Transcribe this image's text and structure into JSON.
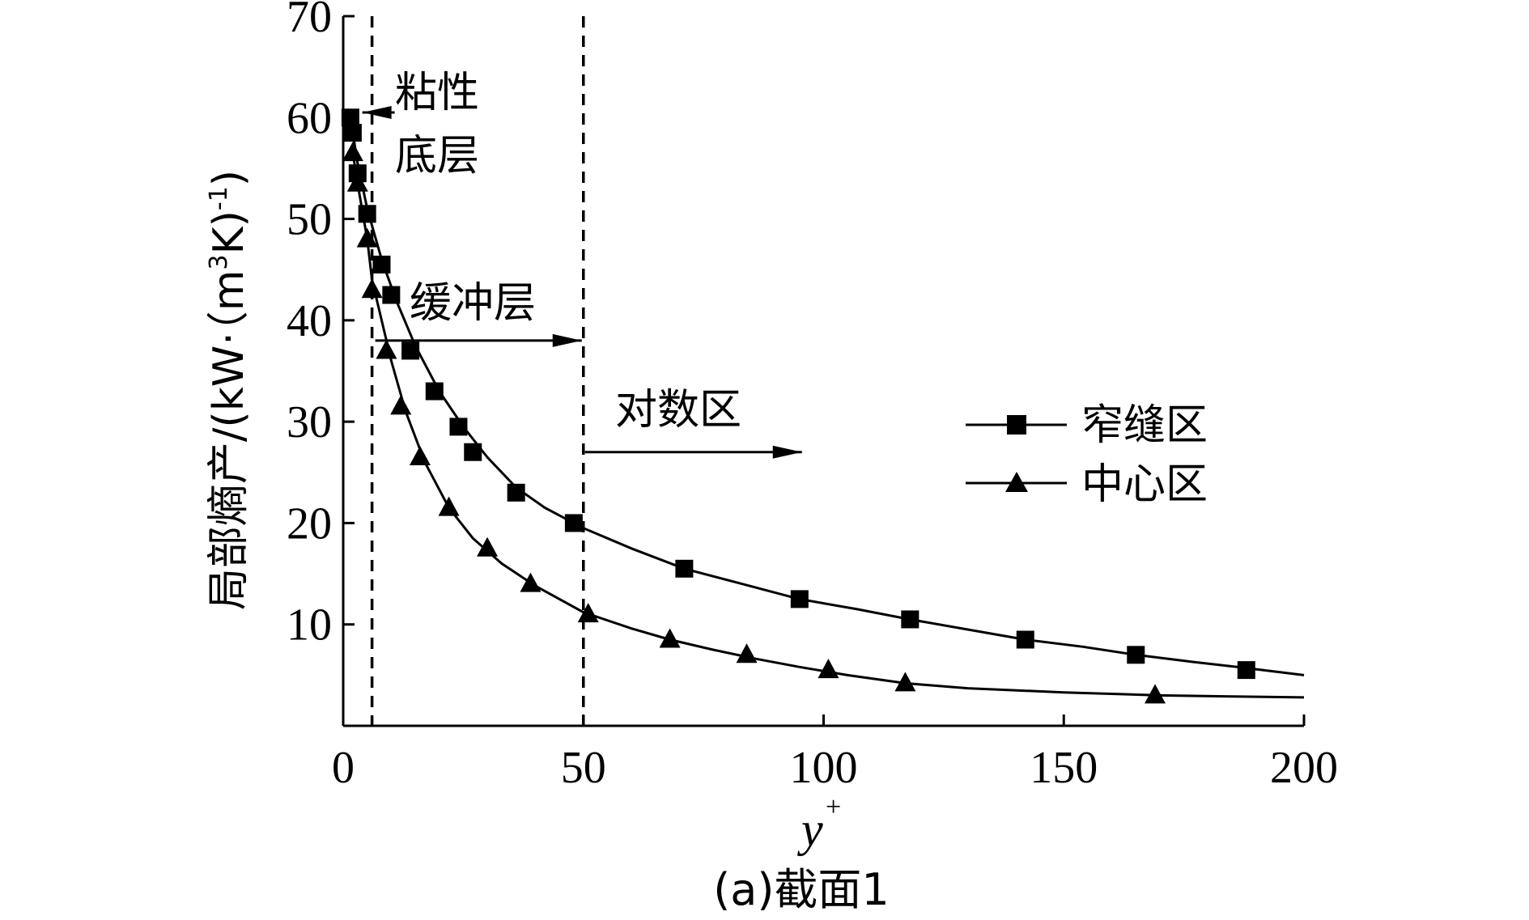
{
  "chart_data": {
    "type": "line",
    "caption": "(a)截面1",
    "xlabel": "y",
    "xlabel_superscript": "+",
    "ylabel_main": "局部熵产/(kW·（m",
    "ylabel_sup1": "3",
    "ylabel_mid": "K)",
    "ylabel_sup2": "-1",
    "ylabel_end": ")",
    "xlim": [
      0,
      200
    ],
    "ylim": [
      0,
      70
    ],
    "xticks": [
      0,
      50,
      100,
      150,
      200
    ],
    "yticks": [
      10,
      20,
      30,
      40,
      50,
      60,
      70
    ],
    "vlines": [
      6,
      50
    ],
    "annotations": {
      "viscous_line1": "粘性",
      "viscous_line2": "底层",
      "buffer": "缓冲层",
      "log": "对数区"
    },
    "legend_position": "center-right",
    "series": [
      {
        "name": "窄缝区",
        "marker": "square",
        "x": [
          1.5,
          2,
          3,
          5,
          8,
          10,
          14,
          19,
          24,
          27,
          36,
          48,
          71,
          95,
          118,
          142,
          165,
          188
        ],
        "y": [
          60,
          58.5,
          54.5,
          50.5,
          45.5,
          42.5,
          37,
          33,
          29.5,
          27,
          23,
          20,
          15.5,
          12.5,
          10.5,
          8.5,
          7,
          5.5
        ],
        "curve": [
          [
            1.5,
            60
          ],
          [
            3,
            55.5
          ],
          [
            5,
            51
          ],
          [
            8,
            46
          ],
          [
            11,
            42
          ],
          [
            15,
            37.5
          ],
          [
            20,
            33
          ],
          [
            25,
            29.5
          ],
          [
            30,
            26.5
          ],
          [
            36,
            23.5
          ],
          [
            42,
            21.5
          ],
          [
            50,
            19.5
          ],
          [
            60,
            17.5
          ],
          [
            71,
            15.5
          ],
          [
            83,
            14
          ],
          [
            95,
            12.5
          ],
          [
            107,
            11.5
          ],
          [
            118,
            10.5
          ],
          [
            130,
            9.5
          ],
          [
            142,
            8.5
          ],
          [
            154,
            7.8
          ],
          [
            165,
            7
          ],
          [
            177,
            6.3
          ],
          [
            188,
            5.7
          ],
          [
            200,
            5
          ]
        ]
      },
      {
        "name": "中心区",
        "marker": "triangle",
        "x": [
          2,
          3,
          5,
          6,
          9,
          12,
          16,
          22,
          30,
          39,
          51,
          68,
          84,
          101,
          117,
          169
        ],
        "y": [
          56.5,
          53.5,
          48,
          43,
          37,
          31.5,
          26.5,
          21.5,
          17.5,
          14,
          11,
          8.5,
          7,
          5.5,
          4.2,
          3
        ],
        "curve": [
          [
            2,
            56.5
          ],
          [
            3,
            53.5
          ],
          [
            5,
            48
          ],
          [
            6,
            44
          ],
          [
            8,
            40
          ],
          [
            10,
            36
          ],
          [
            13,
            31
          ],
          [
            17,
            26
          ],
          [
            22,
            21.5
          ],
          [
            27,
            18.5
          ],
          [
            33,
            16
          ],
          [
            40,
            13.8
          ],
          [
            50,
            11.2
          ],
          [
            60,
            9.6
          ],
          [
            68,
            8.5
          ],
          [
            77,
            7.5
          ],
          [
            86,
            6.6
          ],
          [
            95,
            5.8
          ],
          [
            105,
            5
          ],
          [
            117,
            4.2
          ],
          [
            130,
            3.7
          ],
          [
            150,
            3.3
          ],
          [
            170,
            3
          ],
          [
            185,
            2.9
          ],
          [
            200,
            2.8
          ]
        ]
      }
    ]
  }
}
